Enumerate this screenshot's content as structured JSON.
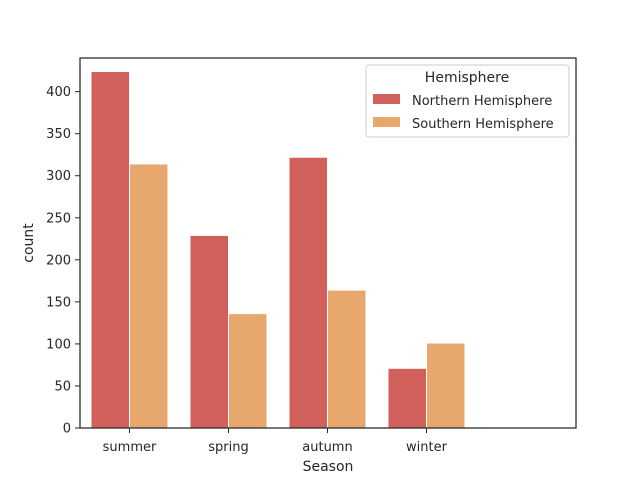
{
  "chart_data": {
    "type": "bar",
    "xlabel": "Season",
    "ylabel": "count",
    "categories": [
      "summer",
      "spring",
      "autumn",
      "winter"
    ],
    "ylim": [
      0,
      440
    ],
    "yticks": [
      0,
      50,
      100,
      150,
      200,
      250,
      300,
      350,
      400
    ],
    "grid": false,
    "legend": {
      "title": "Hemisphere",
      "placement": "top-right"
    },
    "series": [
      {
        "name": "Northern Hemisphere",
        "color": "#d1605b",
        "values": [
          424,
          229,
          322,
          71
        ]
      },
      {
        "name": "Southern Hemisphere",
        "color": "#e8a76d",
        "values": [
          314,
          136,
          164,
          101
        ]
      }
    ]
  }
}
